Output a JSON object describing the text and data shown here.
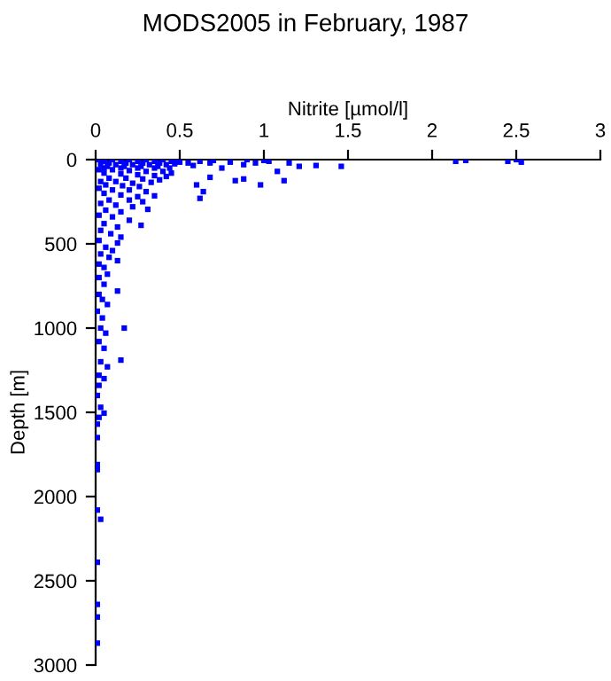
{
  "chart_data": {
    "type": "scatter",
    "title": "MODS2005 in February, 1987",
    "xlabel": "Nitrite [µmol/l]",
    "ylabel": "Depth [m]",
    "x": [
      0.02,
      0.1,
      0.2,
      0.3,
      0.4,
      0.48,
      0.05,
      0.15,
      0.25,
      0.35,
      0.45,
      0.5,
      0.08,
      0.18,
      0.28,
      0.38,
      0.47,
      0.03,
      0.12,
      0.22,
      0.32,
      0.42,
      0.07,
      0.17,
      0.27,
      0.37,
      0.05,
      0.15,
      0.25,
      0.35,
      0.44,
      0.55,
      0.58,
      0.62,
      0.7,
      0.68,
      0.8,
      0.02,
      0.1,
      0.2,
      0.3,
      0.4,
      0.45,
      0.05,
      0.15,
      0.25,
      0.35,
      0.42,
      0.08,
      0.18,
      0.28,
      0.38,
      0.03,
      0.12,
      0.22,
      0.33,
      0.06,
      0.16,
      0.26,
      0.02,
      0.1,
      0.2,
      0.3,
      0.05,
      0.15,
      0.25,
      0.35,
      0.08,
      0.2,
      0.28,
      0.03,
      0.12,
      0.22,
      0.31,
      0.06,
      0.15,
      0.02,
      0.1,
      0.2,
      0.05,
      0.13,
      0.27,
      0.03,
      0.09,
      0.15,
      0.02,
      0.13,
      0.06,
      0.1,
      0.03,
      0.08,
      0.13,
      0.02,
      0.05,
      0.07,
      0.02,
      0.05,
      0.13,
      0.02,
      0.04,
      0.07,
      0.01,
      0.04,
      0.17,
      0.03,
      0.06,
      0.02,
      0.05,
      0.15,
      0.03,
      0.07,
      0.02,
      0.05,
      0.02,
      0.01,
      0.03,
      0.05,
      0.02,
      0.01,
      0.01,
      0.01,
      0.01,
      0.01,
      0.03,
      0.01,
      0.01,
      0.01,
      0.01,
      2.14,
      2.2,
      2.45,
      2.53,
      2.5,
      1.46,
      1.31,
      1.21,
      1.12,
      1.08,
      0.98,
      0.88,
      0.83,
      0.88,
      0.62,
      0.64,
      0.6,
      0.68,
      0.75,
      1.03,
      1.0,
      0.95,
      1.15,
      0.9
    ],
    "values": [
      0,
      0,
      0,
      0,
      0,
      0,
      10,
      10,
      10,
      10,
      10,
      15,
      20,
      20,
      20,
      20,
      25,
      30,
      30,
      30,
      30,
      30,
      40,
      40,
      40,
      40,
      50,
      50,
      50,
      50,
      50,
      20,
      35,
      10,
      5,
      20,
      15,
      60,
      60,
      65,
      70,
      70,
      80,
      80,
      85,
      90,
      95,
      100,
      110,
      110,
      115,
      120,
      130,
      130,
      140,
      135,
      150,
      155,
      160,
      170,
      180,
      180,
      190,
      200,
      210,
      220,
      215,
      240,
      240,
      250,
      260,
      270,
      280,
      295,
      300,
      310,
      330,
      340,
      360,
      380,
      400,
      390,
      420,
      440,
      460,
      480,
      495,
      520,
      540,
      560,
      580,
      600,
      620,
      640,
      680,
      700,
      740,
      780,
      800,
      830,
      860,
      900,
      940,
      1000,
      1000,
      1030,
      1080,
      1120,
      1190,
      1200,
      1230,
      1280,
      1300,
      1340,
      1400,
      1470,
      1505,
      1530,
      1570,
      1650,
      1810,
      1840,
      2080,
      2135,
      2390,
      2640,
      2715,
      2870,
      10,
      5,
      10,
      15,
      0,
      40,
      35,
      40,
      125,
      70,
      150,
      30,
      125,
      115,
      230,
      190,
      150,
      105,
      50,
      10,
      5,
      20,
      20,
      0
    ],
    "color": "#0000ff",
    "marker": "square",
    "xlim": [
      0,
      3
    ],
    "xticks": [
      0,
      0.5,
      1,
      1.5,
      2,
      2.5,
      3
    ],
    "ylim": [
      3000,
      0
    ],
    "yticks": [
      0,
      500,
      1000,
      1500,
      2000,
      2500,
      3000
    ]
  }
}
